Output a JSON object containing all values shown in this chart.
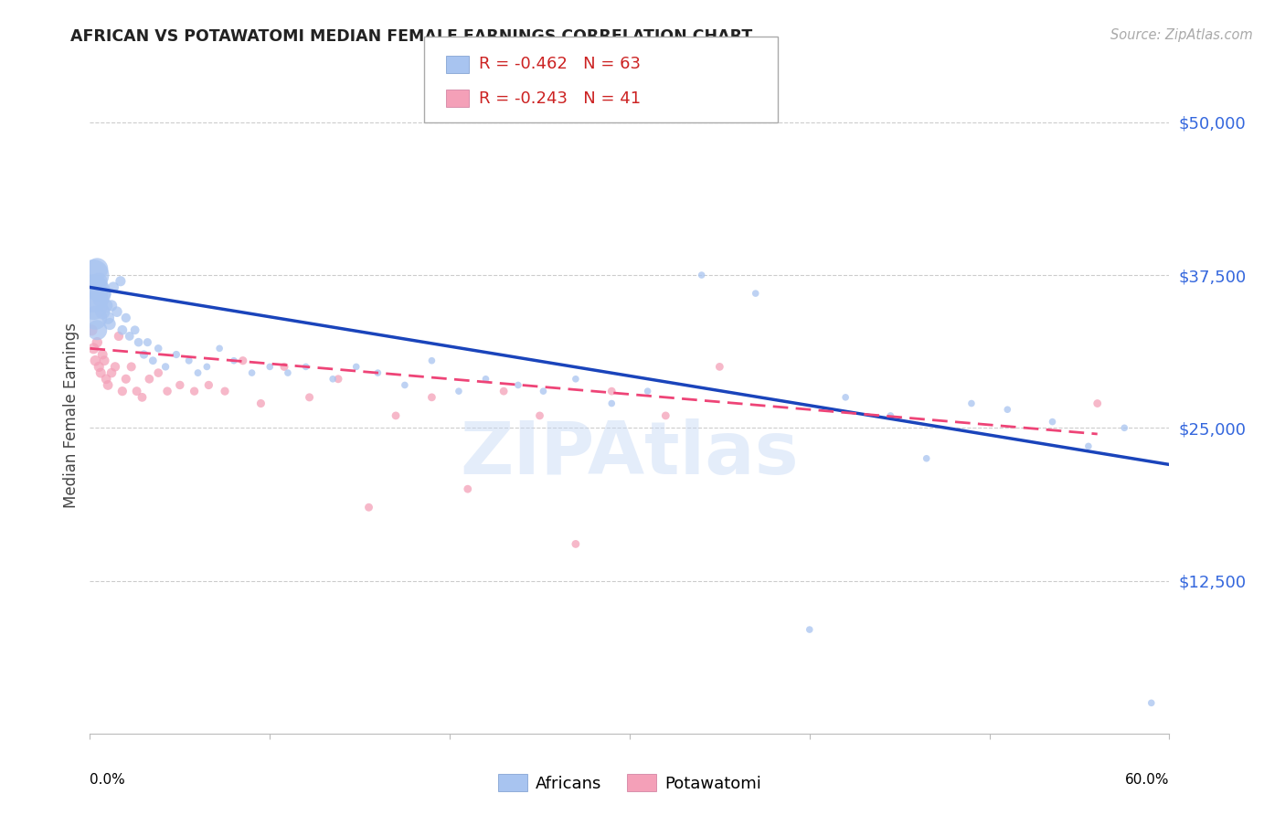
{
  "title": "AFRICAN VS POTAWATOMI MEDIAN FEMALE EARNINGS CORRELATION CHART",
  "source": "Source: ZipAtlas.com",
  "ylabel": "Median Female Earnings",
  "yticks": [
    0,
    12500,
    25000,
    37500,
    50000
  ],
  "ytick_labels": [
    "",
    "$12,500",
    "$25,000",
    "$37,500",
    "$50,000"
  ],
  "xmin": 0.0,
  "xmax": 0.6,
  "ymin": 0,
  "ymax": 52000,
  "africans_R": "-0.462",
  "africans_N": "63",
  "potawatomi_R": "-0.243",
  "potawatomi_N": "41",
  "blue_color": "#a8c4f0",
  "pink_color": "#f4a0b8",
  "blue_line_color": "#1a44bb",
  "pink_line_color": "#ee4477",
  "watermark": "ZIPAtlas",
  "legend_label_1": "Africans",
  "legend_label_2": "Potawatomi",
  "africans_x": [
    0.001,
    0.002,
    0.002,
    0.003,
    0.003,
    0.004,
    0.004,
    0.005,
    0.005,
    0.006,
    0.007,
    0.008,
    0.009,
    0.01,
    0.011,
    0.012,
    0.013,
    0.015,
    0.017,
    0.018,
    0.02,
    0.022,
    0.025,
    0.027,
    0.03,
    0.032,
    0.035,
    0.038,
    0.042,
    0.048,
    0.055,
    0.06,
    0.065,
    0.072,
    0.08,
    0.09,
    0.1,
    0.11,
    0.12,
    0.135,
    0.148,
    0.16,
    0.175,
    0.19,
    0.205,
    0.22,
    0.238,
    0.252,
    0.27,
    0.29,
    0.31,
    0.34,
    0.37,
    0.4,
    0.42,
    0.445,
    0.465,
    0.49,
    0.51,
    0.535,
    0.555,
    0.575,
    0.59
  ],
  "africans_y": [
    36000,
    37500,
    35000,
    36500,
    34000,
    38000,
    33000,
    36000,
    37000,
    35500,
    34500,
    36000,
    35000,
    34000,
    33500,
    35000,
    36500,
    34500,
    37000,
    33000,
    34000,
    32500,
    33000,
    32000,
    31000,
    32000,
    30500,
    31500,
    30000,
    31000,
    30500,
    29500,
    30000,
    31500,
    30500,
    29500,
    30000,
    29500,
    30000,
    29000,
    30000,
    29500,
    28500,
    30500,
    28000,
    29000,
    28500,
    28000,
    29000,
    27000,
    28000,
    37500,
    36000,
    8500,
    27500,
    26000,
    22500,
    27000,
    26500,
    25500,
    23500,
    25000,
    2500
  ],
  "africans_size": [
    900,
    600,
    500,
    400,
    350,
    300,
    250,
    200,
    180,
    160,
    140,
    120,
    110,
    100,
    90,
    80,
    75,
    70,
    65,
    60,
    55,
    50,
    50,
    48,
    45,
    43,
    40,
    38,
    36,
    35,
    33,
    32,
    31,
    30,
    30,
    30,
    30,
    30,
    30,
    30,
    30,
    30,
    30,
    30,
    30,
    30,
    30,
    30,
    30,
    30,
    30,
    30,
    30,
    30,
    30,
    30,
    30,
    30,
    30,
    30,
    30,
    30,
    30
  ],
  "potawatomi_x": [
    0.001,
    0.002,
    0.003,
    0.004,
    0.005,
    0.006,
    0.007,
    0.008,
    0.009,
    0.01,
    0.012,
    0.014,
    0.016,
    0.018,
    0.02,
    0.023,
    0.026,
    0.029,
    0.033,
    0.038,
    0.043,
    0.05,
    0.058,
    0.066,
    0.075,
    0.085,
    0.095,
    0.108,
    0.122,
    0.138,
    0.155,
    0.17,
    0.19,
    0.21,
    0.23,
    0.25,
    0.27,
    0.29,
    0.32,
    0.35,
    0.56
  ],
  "potawatomi_y": [
    33000,
    31500,
    30500,
    32000,
    30000,
    29500,
    31000,
    30500,
    29000,
    28500,
    29500,
    30000,
    32500,
    28000,
    29000,
    30000,
    28000,
    27500,
    29000,
    29500,
    28000,
    28500,
    28000,
    28500,
    28000,
    30500,
    27000,
    30000,
    27500,
    29000,
    18500,
    26000,
    27500,
    20000,
    28000,
    26000,
    15500,
    28000,
    26000,
    30000,
    27000
  ],
  "potawatomi_size": [
    80,
    75,
    70,
    68,
    65,
    63,
    62,
    61,
    60,
    60,
    58,
    56,
    55,
    54,
    53,
    52,
    51,
    50,
    49,
    48,
    47,
    46,
    45,
    45,
    44,
    44,
    43,
    42,
    42,
    41,
    41,
    40,
    40,
    40,
    40,
    40,
    40,
    40,
    40,
    40,
    40
  ],
  "blue_line_x0": 0.0,
  "blue_line_x1": 0.6,
  "blue_line_y0": 36500,
  "blue_line_y1": 22000,
  "pink_line_x0": 0.0,
  "pink_line_x1": 0.56,
  "pink_line_y0": 31500,
  "pink_line_y1": 24500
}
